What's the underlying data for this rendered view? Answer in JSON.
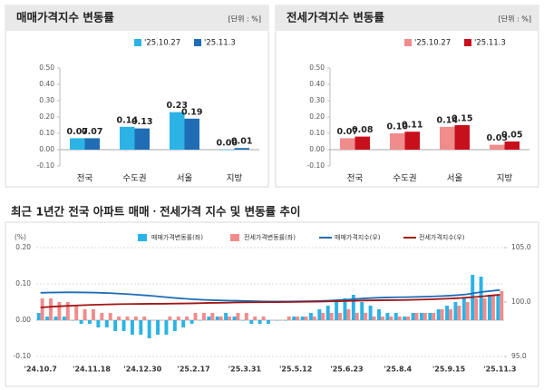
{
  "chart_data": [
    {
      "type": "bar",
      "title": "매매가격지수 변동률",
      "unit_note": "[단위 : %]",
      "categories": [
        "전국",
        "수도권",
        "서울",
        "지방"
      ],
      "series": [
        {
          "name": "'25.10.27",
          "color": "#2bb3e6",
          "values": [
            0.07,
            0.14,
            0.23,
            0
          ],
          "value_labels": [
            "0.07",
            "0.14",
            "0.23",
            "0.00"
          ]
        },
        {
          "name": "'25.11.3",
          "color": "#1f6db5",
          "values": [
            0.07,
            0.13,
            0.19,
            0.01
          ],
          "value_labels": [
            "0.07",
            "0.13",
            "0.19",
            "0.01"
          ]
        }
      ],
      "ylim": [
        -0.1,
        0.5
      ],
      "yticks": [
        {
          "value": 0.5,
          "label": "0.50"
        },
        {
          "value": 0.4,
          "label": "0.40"
        },
        {
          "value": 0.3,
          "label": "0.30"
        },
        {
          "value": 0.2,
          "label": "0.20"
        },
        {
          "value": 0.1,
          "label": "0.10"
        },
        {
          "value": 0,
          "label": "0.00"
        },
        {
          "value": -0.1,
          "label": "-0.10"
        }
      ],
      "grid": false
    },
    {
      "type": "bar",
      "title": "전세가격지수 변동률",
      "unit_note": "[단위 : %]",
      "categories": [
        "전국",
        "수도권",
        "서울",
        "지방"
      ],
      "series": [
        {
          "name": "'25.10.27",
          "color": "#f08c8c",
          "values": [
            0.07,
            0.1,
            0.14,
            0.03
          ],
          "value_labels": [
            "0.07",
            "0.10",
            "0.14",
            "0.03"
          ]
        },
        {
          "name": "'25.11.3",
          "color": "#c8101c",
          "values": [
            0.08,
            0.11,
            0.15,
            0.05
          ],
          "value_labels": [
            "0.08",
            "0.11",
            "0.15",
            "0.05"
          ]
        }
      ],
      "ylim": [
        -0.1,
        0.5
      ],
      "yticks": [
        {
          "value": 0.5,
          "label": "0.50"
        },
        {
          "value": 0.4,
          "label": "0.40"
        },
        {
          "value": 0.3,
          "label": "0.30"
        },
        {
          "value": 0.2,
          "label": "0.20"
        },
        {
          "value": 0.1,
          "label": "0.10"
        },
        {
          "value": 0,
          "label": "0.00"
        },
        {
          "value": -0.1,
          "label": "-0.10"
        }
      ],
      "grid": false
    },
    {
      "type": "combo",
      "title": "최근 1년간 전국 아파트 매매ㆍ전세가격 지수 및 변동률 추이",
      "y_label": "(%)",
      "categories": [
        "'24.10.7",
        null,
        null,
        null,
        null,
        null,
        "'24.11.18",
        null,
        null,
        null,
        null,
        null,
        "'24.12.30",
        null,
        null,
        null,
        null,
        null,
        "'25.2.17",
        null,
        null,
        null,
        null,
        null,
        "'25.3.31",
        null,
        null,
        null,
        null,
        null,
        "'25.5.12",
        null,
        null,
        null,
        null,
        null,
        "'25.6.23",
        null,
        null,
        null,
        null,
        null,
        "'25.8.4",
        null,
        null,
        null,
        null,
        null,
        "'25.9.15",
        null,
        null,
        null,
        null,
        null,
        "'25.11.3"
      ],
      "series": [
        {
          "name": "매매가격변동률(좌)",
          "color": "#2bb3e6",
          "values": [
            0.02,
            0.01,
            0.01,
            0.01,
            0,
            -0.01,
            -0.01,
            -0.02,
            -0.02,
            -0.03,
            -0.03,
            -0.04,
            -0.04,
            -0.05,
            -0.04,
            -0.04,
            -0.03,
            -0.02,
            -0.01,
            0,
            0.01,
            0.01,
            0.02,
            0.01,
            0,
            -0.01,
            -0.01,
            -0.01,
            0,
            0,
            0.01,
            0.01,
            0.02,
            0.03,
            0.04,
            0.05,
            0.06,
            0.07,
            0.05,
            0.04,
            0.03,
            0.02,
            0.02,
            0.01,
            0.02,
            0.02,
            0.02,
            0.03,
            0.04,
            0.05,
            0.06,
            0.125,
            0.12,
            0.07,
            0.07
          ]
        },
        {
          "name": "전세가격변동률(좌)",
          "color": "#f08c8c",
          "values": [
            0.06,
            0.06,
            0.05,
            0.05,
            0.04,
            0.03,
            0.03,
            0.02,
            0.02,
            0.01,
            0.01,
            0.01,
            0.01,
            0,
            0,
            0.01,
            0.01,
            0.01,
            0.02,
            0.02,
            0.02,
            0.01,
            0.01,
            0.02,
            0.02,
            0.01,
            0.01,
            0,
            0,
            0.01,
            0.01,
            0.01,
            0.01,
            0.02,
            0.02,
            0.02,
            0.03,
            0.02,
            0.02,
            0.01,
            0.01,
            0.01,
            0.01,
            0.01,
            0.02,
            0.02,
            0.02,
            0.03,
            0.03,
            0.04,
            0.05,
            0.06,
            0.06,
            0.07,
            0.08
          ]
        },
        {
          "name": "매매가격지수(우)",
          "color": "#1f6db5",
          "axis": "y2",
          "values": [
            100.85,
            100.87,
            100.88,
            100.89,
            100.89,
            100.88,
            100.87,
            100.85,
            100.82,
            100.78,
            100.74,
            100.69,
            100.63,
            100.57,
            100.5,
            100.43,
            100.36,
            100.3,
            100.25,
            100.21,
            100.18,
            100.15,
            100.13,
            100.12,
            100.1,
            100.08,
            100.06,
            100.05,
            100.05,
            100.05,
            100.06,
            100.07,
            100.08,
            100.1,
            100.13,
            100.17,
            100.22,
            100.28,
            100.33,
            100.37,
            100.4,
            100.42,
            100.44,
            100.45,
            100.47,
            100.49,
            100.51,
            100.54,
            100.58,
            100.63,
            100.7,
            100.82,
            100.94,
            101.02,
            101.1
          ]
        },
        {
          "name": "전세가격지수(우)",
          "color": "#a31515",
          "axis": "y2",
          "values": [
            99.5,
            99.55,
            99.6,
            99.64,
            99.68,
            99.71,
            99.74,
            99.76,
            99.78,
            99.8,
            99.81,
            99.82,
            99.83,
            99.84,
            99.84,
            99.85,
            99.86,
            99.87,
            99.88,
            99.9,
            99.92,
            99.93,
            99.94,
            99.96,
            99.97,
            99.98,
            99.98,
            99.99,
            99.99,
            100,
            100.01,
            100.02,
            100.03,
            100.04,
            100.06,
            100.08,
            100.1,
            100.12,
            100.14,
            100.15,
            100.16,
            100.17,
            100.18,
            100.19,
            100.21,
            100.23,
            100.25,
            100.28,
            100.31,
            100.35,
            100.4,
            100.46,
            100.52,
            100.6,
            100.68
          ]
        }
      ],
      "ylim": [
        -0.1,
        0.2
      ],
      "yticks": [
        {
          "value": 0.2,
          "label": "0.20"
        },
        {
          "value": 0.1,
          "label": "0.10"
        },
        {
          "value": 0,
          "label": "0.00"
        },
        {
          "value": -0.1,
          "label": "-0.10"
        }
      ],
      "y2lim": [
        95,
        105
      ],
      "y2ticks": [
        {
          "value": 105,
          "label": "105.0"
        },
        {
          "value": 100,
          "label": "100.0"
        },
        {
          "value": 95,
          "label": "95.0"
        }
      ],
      "grid": true
    }
  ]
}
